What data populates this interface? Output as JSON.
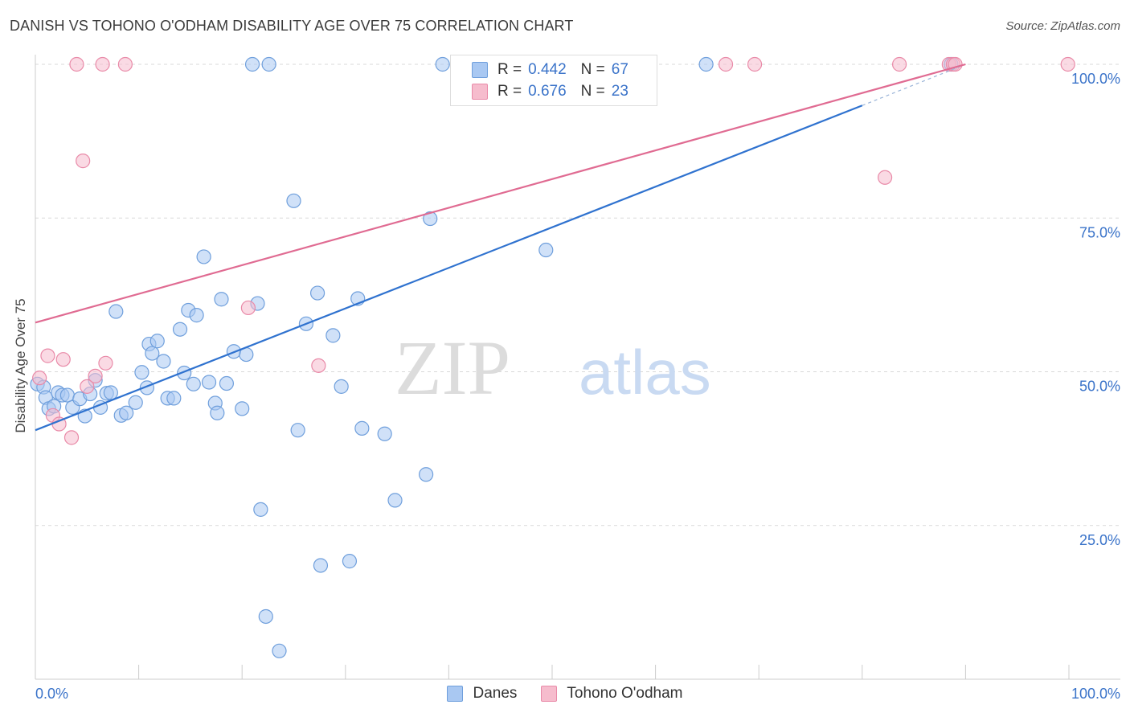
{
  "title": "DANISH VS TOHONO O'ODHAM DISABILITY AGE OVER 75 CORRELATION CHART",
  "source": "Source: ZipAtlas.com",
  "watermark": {
    "zip": "ZIP",
    "atlas": "atlas"
  },
  "colors": {
    "danes_fill": "#a9c8f2",
    "danes_stroke": "#6f9fdc",
    "danes_line": "#2f72cf",
    "tohono_fill": "#f6bccd",
    "tohono_stroke": "#e98aa8",
    "tohono_line": "#e06b92",
    "grid": "#d9d9d9",
    "tick_text": "#3a73c9"
  },
  "legend": {
    "rows": [
      {
        "r_label": "R =",
        "r_value": "0.442",
        "n_label": "N =",
        "n_value": "67"
      },
      {
        "r_label": "R =",
        "r_value": "0.676",
        "n_label": "N =",
        "n_value": "23"
      }
    ]
  },
  "bottom_legend": [
    "Danes",
    "Tohono O'odham"
  ],
  "chart_data": {
    "type": "scatter",
    "xlabel": "",
    "ylabel": "Disability Age Over 75",
    "xlim": [
      0,
      100
    ],
    "ylim": [
      0,
      100
    ],
    "x_tick_labels": [
      "0.0%",
      "100.0%"
    ],
    "y_tick_labels": [
      "25.0%",
      "50.0%",
      "75.0%",
      "100.0%"
    ],
    "y_ticks": [
      25,
      50,
      75,
      100
    ],
    "grid": "horizontal dashed",
    "legend_placement": "top-center",
    "series": [
      {
        "name": "Danes",
        "r": 0.442,
        "n": 67,
        "trend": {
          "x0": 0,
          "y0": 40.5,
          "x1": 80,
          "y1": 93.3,
          "dashed_to_x": 90,
          "dashed_to_y": 100
        },
        "points": [
          [
            0.2,
            48.0
          ],
          [
            0.8,
            47.5
          ],
          [
            1.0,
            45.8
          ],
          [
            1.3,
            44.0
          ],
          [
            1.8,
            44.4
          ],
          [
            2.2,
            46.6
          ],
          [
            2.6,
            46.2
          ],
          [
            3.1,
            46.2
          ],
          [
            3.6,
            44.2
          ],
          [
            4.3,
            45.6
          ],
          [
            4.8,
            42.8
          ],
          [
            5.3,
            46.4
          ],
          [
            5.8,
            48.6
          ],
          [
            6.3,
            44.2
          ],
          [
            6.9,
            46.5
          ],
          [
            7.3,
            46.6
          ],
          [
            7.8,
            59.8
          ],
          [
            8.3,
            42.9
          ],
          [
            8.8,
            43.3
          ],
          [
            9.7,
            45.0
          ],
          [
            10.3,
            49.9
          ],
          [
            10.8,
            47.4
          ],
          [
            11.0,
            54.5
          ],
          [
            11.3,
            53.0
          ],
          [
            11.8,
            55.0
          ],
          [
            12.4,
            51.7
          ],
          [
            12.8,
            45.7
          ],
          [
            13.4,
            45.7
          ],
          [
            14.0,
            56.9
          ],
          [
            14.4,
            49.8
          ],
          [
            14.8,
            60.0
          ],
          [
            15.3,
            48.0
          ],
          [
            15.6,
            59.2
          ],
          [
            16.3,
            68.7
          ],
          [
            16.8,
            48.3
          ],
          [
            17.4,
            44.9
          ],
          [
            17.6,
            43.3
          ],
          [
            18.0,
            61.8
          ],
          [
            18.5,
            48.1
          ],
          [
            19.2,
            53.3
          ],
          [
            20.0,
            44.0
          ],
          [
            20.4,
            52.8
          ],
          [
            21.0,
            100
          ],
          [
            21.5,
            61.1
          ],
          [
            21.8,
            27.6
          ],
          [
            22.3,
            10.2
          ],
          [
            22.6,
            100
          ],
          [
            23.6,
            4.6
          ],
          [
            25.0,
            77.8
          ],
          [
            25.4,
            40.5
          ],
          [
            26.2,
            57.8
          ],
          [
            27.3,
            62.8
          ],
          [
            27.6,
            18.5
          ],
          [
            28.8,
            55.9
          ],
          [
            29.6,
            47.6
          ],
          [
            30.4,
            19.2
          ],
          [
            31.2,
            61.9
          ],
          [
            31.6,
            40.8
          ],
          [
            33.8,
            39.9
          ],
          [
            34.8,
            29.1
          ],
          [
            37.8,
            33.3
          ],
          [
            38.2,
            74.9
          ],
          [
            39.4,
            100
          ],
          [
            47.8,
            100
          ],
          [
            49.4,
            69.8
          ],
          [
            64.9,
            100
          ],
          [
            88.6,
            100
          ]
        ]
      },
      {
        "name": "Tohono O'odham",
        "r": 0.676,
        "n": 23,
        "trend": {
          "x0": 0,
          "y0": 58.0,
          "x1": 90,
          "y1": 100
        },
        "points": [
          [
            0.4,
            49.0
          ],
          [
            1.2,
            52.6
          ],
          [
            1.7,
            42.9
          ],
          [
            2.3,
            41.5
          ],
          [
            2.7,
            52.0
          ],
          [
            3.5,
            39.3
          ],
          [
            4.0,
            100
          ],
          [
            4.6,
            84.3
          ],
          [
            5.0,
            47.6
          ],
          [
            5.8,
            49.3
          ],
          [
            6.5,
            100
          ],
          [
            6.8,
            51.4
          ],
          [
            8.7,
            100
          ],
          [
            20.6,
            60.4
          ],
          [
            27.4,
            51.0
          ],
          [
            66.8,
            100
          ],
          [
            69.6,
            100
          ],
          [
            82.2,
            81.6
          ],
          [
            83.6,
            100
          ],
          [
            88.4,
            100
          ],
          [
            88.8,
            100
          ],
          [
            99.9,
            100
          ],
          [
            89.0,
            100
          ]
        ]
      }
    ]
  }
}
